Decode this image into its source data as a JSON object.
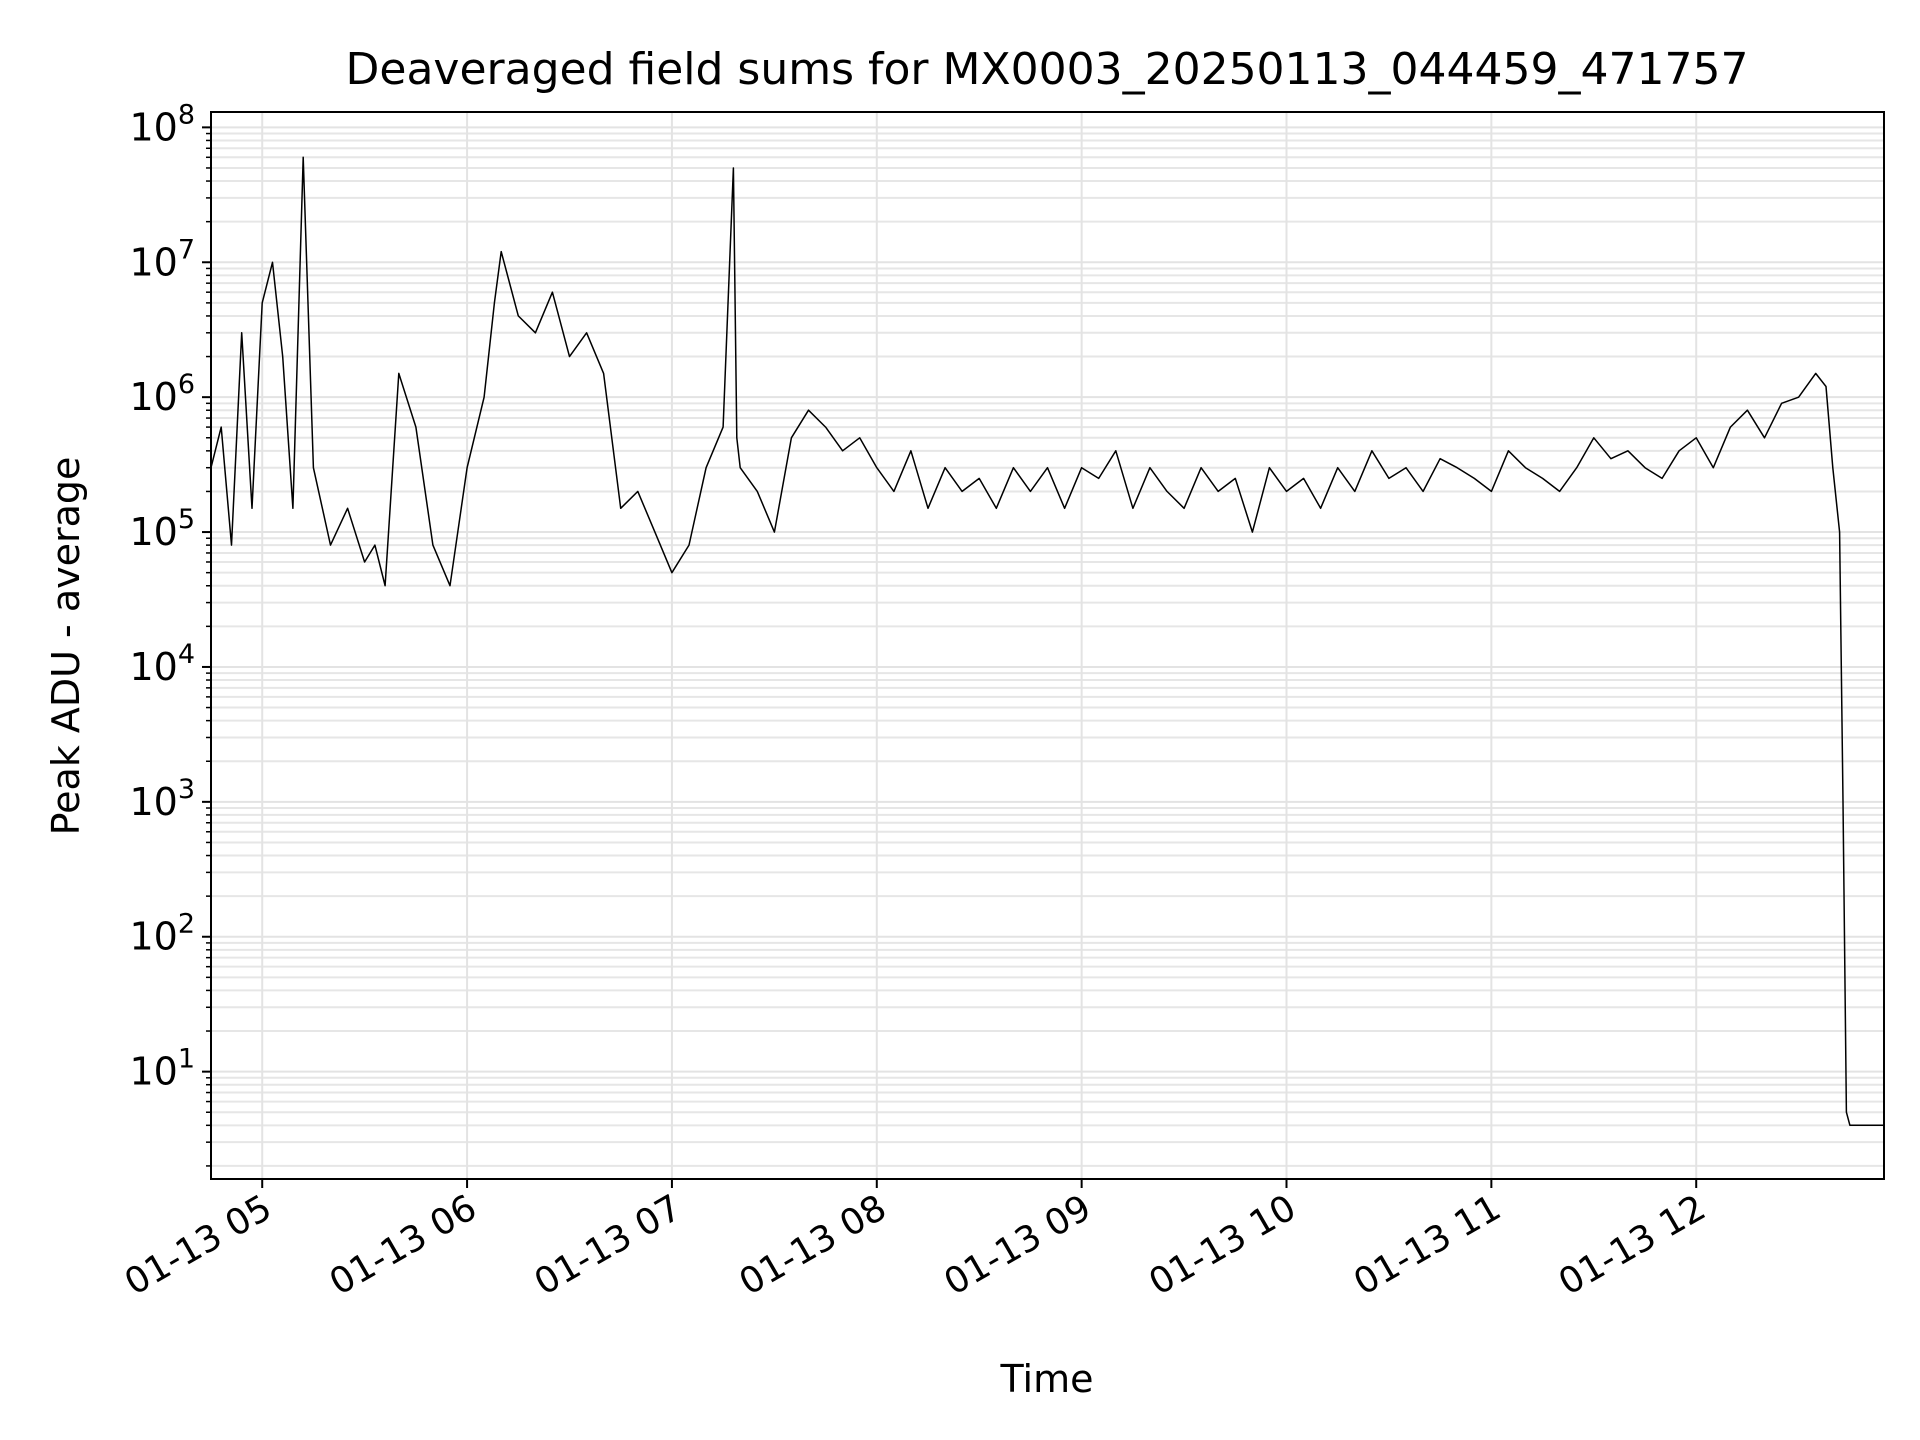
{
  "chart_data": {
    "type": "line",
    "title": "Deaveraged field sums for MX0003_20250113_044459_471757",
    "xlabel": "Time",
    "ylabel": "Peak ADU - average",
    "y_scale": "log",
    "ylim": [
      1.6,
      130000000
    ],
    "xlim": [
      "2025-01-13T04:45",
      "2025-01-13T12:55"
    ],
    "grid": true,
    "x_ticks": [
      {
        "t": "2025-01-13T05:00",
        "label": "01-13 05"
      },
      {
        "t": "2025-01-13T06:00",
        "label": "01-13 06"
      },
      {
        "t": "2025-01-13T07:00",
        "label": "01-13 07"
      },
      {
        "t": "2025-01-13T08:00",
        "label": "01-13 08"
      },
      {
        "t": "2025-01-13T09:00",
        "label": "01-13 09"
      },
      {
        "t": "2025-01-13T10:00",
        "label": "01-13 10"
      },
      {
        "t": "2025-01-13T11:00",
        "label": "01-13 11"
      },
      {
        "t": "2025-01-13T12:00",
        "label": "01-13 12"
      }
    ],
    "y_ticks": [
      {
        "value": 10,
        "base": "10",
        "exp": "1"
      },
      {
        "value": 100,
        "base": "10",
        "exp": "2"
      },
      {
        "value": 1000,
        "base": "10",
        "exp": "3"
      },
      {
        "value": 10000,
        "base": "10",
        "exp": "4"
      },
      {
        "value": 100000,
        "base": "10",
        "exp": "5"
      },
      {
        "value": 1000000,
        "base": "10",
        "exp": "6"
      },
      {
        "value": 10000000,
        "base": "10",
        "exp": "7"
      },
      {
        "value": 100000000,
        "base": "10",
        "exp": "8"
      }
    ],
    "series": [
      {
        "color": "#000000",
        "x": [
          "2025-01-13T04:45",
          "2025-01-13T04:48",
          "2025-01-13T04:51",
          "2025-01-13T04:54",
          "2025-01-13T04:57",
          "2025-01-13T05:00",
          "2025-01-13T05:03",
          "2025-01-13T05:06",
          "2025-01-13T05:09",
          "2025-01-13T05:12",
          "2025-01-13T05:15",
          "2025-01-13T05:20",
          "2025-01-13T05:25",
          "2025-01-13T05:30",
          "2025-01-13T05:33",
          "2025-01-13T05:36",
          "2025-01-13T05:40",
          "2025-01-13T05:45",
          "2025-01-13T05:50",
          "2025-01-13T05:55",
          "2025-01-13T06:00",
          "2025-01-13T06:05",
          "2025-01-13T06:08",
          "2025-01-13T06:10",
          "2025-01-13T06:15",
          "2025-01-13T06:20",
          "2025-01-13T06:25",
          "2025-01-13T06:30",
          "2025-01-13T06:35",
          "2025-01-13T06:40",
          "2025-01-13T06:45",
          "2025-01-13T06:50",
          "2025-01-13T06:55",
          "2025-01-13T07:00",
          "2025-01-13T07:05",
          "2025-01-13T07:10",
          "2025-01-13T07:15",
          "2025-01-13T07:18",
          "2025-01-13T07:19",
          "2025-01-13T07:20",
          "2025-01-13T07:25",
          "2025-01-13T07:30",
          "2025-01-13T07:35",
          "2025-01-13T07:40",
          "2025-01-13T07:45",
          "2025-01-13T07:50",
          "2025-01-13T07:55",
          "2025-01-13T08:00",
          "2025-01-13T08:05",
          "2025-01-13T08:10",
          "2025-01-13T08:15",
          "2025-01-13T08:20",
          "2025-01-13T08:25",
          "2025-01-13T08:30",
          "2025-01-13T08:35",
          "2025-01-13T08:40",
          "2025-01-13T08:45",
          "2025-01-13T08:50",
          "2025-01-13T08:55",
          "2025-01-13T09:00",
          "2025-01-13T09:05",
          "2025-01-13T09:10",
          "2025-01-13T09:15",
          "2025-01-13T09:20",
          "2025-01-13T09:25",
          "2025-01-13T09:30",
          "2025-01-13T09:35",
          "2025-01-13T09:40",
          "2025-01-13T09:45",
          "2025-01-13T09:50",
          "2025-01-13T09:55",
          "2025-01-13T10:00",
          "2025-01-13T10:05",
          "2025-01-13T10:10",
          "2025-01-13T10:15",
          "2025-01-13T10:20",
          "2025-01-13T10:25",
          "2025-01-13T10:30",
          "2025-01-13T10:35",
          "2025-01-13T10:40",
          "2025-01-13T10:45",
          "2025-01-13T10:50",
          "2025-01-13T10:55",
          "2025-01-13T11:00",
          "2025-01-13T11:05",
          "2025-01-13T11:10",
          "2025-01-13T11:15",
          "2025-01-13T11:20",
          "2025-01-13T11:25",
          "2025-01-13T11:30",
          "2025-01-13T11:35",
          "2025-01-13T11:40",
          "2025-01-13T11:45",
          "2025-01-13T11:50",
          "2025-01-13T11:55",
          "2025-01-13T12:00",
          "2025-01-13T12:05",
          "2025-01-13T12:10",
          "2025-01-13T12:15",
          "2025-01-13T12:20",
          "2025-01-13T12:25",
          "2025-01-13T12:30",
          "2025-01-13T12:35",
          "2025-01-13T12:38",
          "2025-01-13T12:40",
          "2025-01-13T12:42",
          "2025-01-13T12:43",
          "2025-01-13T12:44",
          "2025-01-13T12:45",
          "2025-01-13T12:50",
          "2025-01-13T12:55"
        ],
        "y": [
          300000,
          600000,
          80000,
          3000000,
          150000,
          5000000,
          10000000,
          2000000,
          150000,
          60000000,
          300000,
          80000,
          150000,
          60000,
          80000,
          40000,
          1500000,
          600000,
          80000,
          40000,
          300000,
          1000000,
          5000000,
          12000000,
          4000000,
          3000000,
          6000000,
          2000000,
          3000000,
          1500000,
          150000,
          200000,
          100000,
          50000,
          80000,
          300000,
          600000,
          50000000,
          500000,
          300000,
          200000,
          100000,
          500000,
          800000,
          600000,
          400000,
          500000,
          300000,
          200000,
          400000,
          150000,
          300000,
          200000,
          250000,
          150000,
          300000,
          200000,
          300000,
          150000,
          300000,
          250000,
          400000,
          150000,
          300000,
          200000,
          150000,
          300000,
          200000,
          250000,
          100000,
          300000,
          200000,
          250000,
          150000,
          300000,
          200000,
          400000,
          250000,
          300000,
          200000,
          350000,
          300000,
          250000,
          200000,
          400000,
          300000,
          250000,
          200000,
          300000,
          500000,
          350000,
          400000,
          300000,
          250000,
          400000,
          500000,
          300000,
          600000,
          800000,
          500000,
          900000,
          1000000,
          1500000,
          1200000,
          300000,
          100000,
          1000,
          5,
          4,
          4,
          4
        ]
      }
    ]
  }
}
